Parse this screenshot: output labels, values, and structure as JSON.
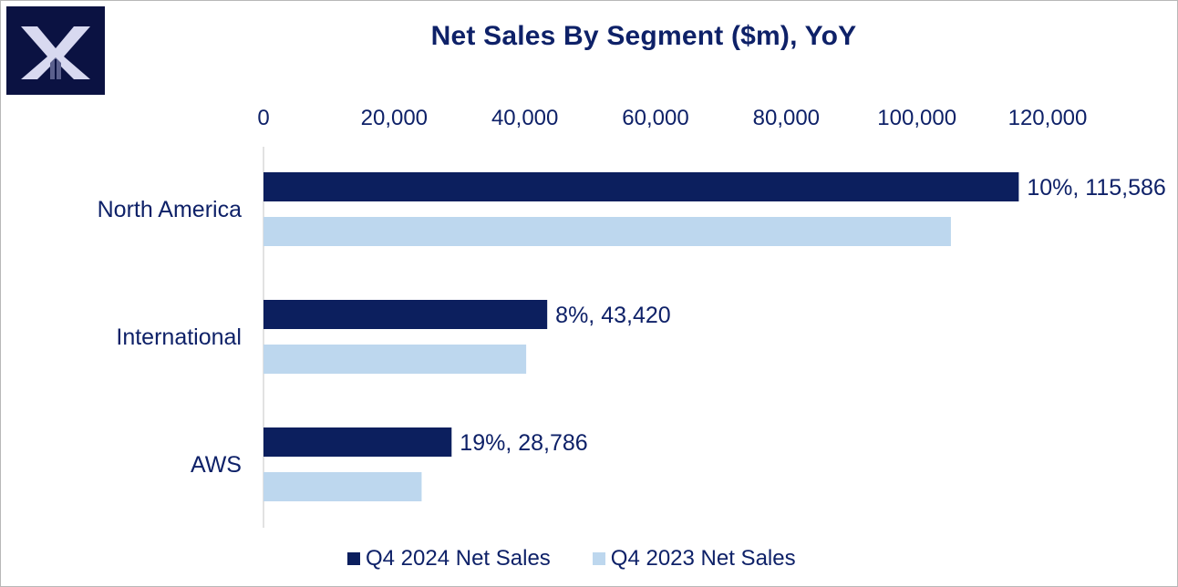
{
  "chart_data": {
    "type": "bar",
    "orientation": "horizontal",
    "title": "Net Sales By Segment ($m), YoY",
    "categories": [
      "North America",
      "International",
      "AWS"
    ],
    "xlim": [
      0,
      120000
    ],
    "x_ticks": [
      0,
      20000,
      40000,
      60000,
      80000,
      100000,
      120000
    ],
    "x_tick_labels": [
      "0",
      "20,000",
      "40,000",
      "60,000",
      "80,000",
      "100,000",
      "120,000"
    ],
    "axis_position": "top",
    "grid": false,
    "series": [
      {
        "name": "Q4 2024 Net Sales",
        "color": "#0c1f5e",
        "values": [
          115586,
          43420,
          28786
        ],
        "labels": [
          "10%,  115,586",
          "8%,  43,420",
          "19%,  28,786"
        ]
      },
      {
        "name": "Q4 2023 Net Sales",
        "color": "#bdd7ee",
        "values": [
          105200,
          40200,
          24200
        ],
        "labels": []
      }
    ],
    "legend_position": "bottom-center"
  }
}
